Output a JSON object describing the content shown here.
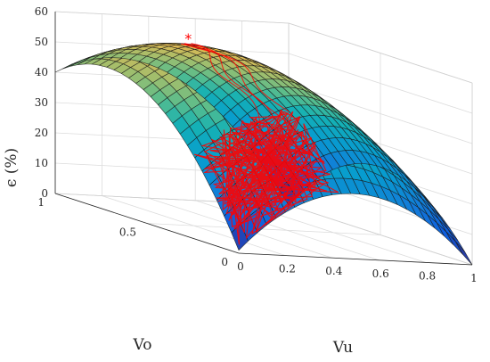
{
  "chart_data": {
    "type": "surface3d",
    "title": "",
    "xlabel": "Vu",
    "ylabel": "Vo",
    "zlabel": "ϵ (%)",
    "xlim": [
      0,
      1
    ],
    "ylim": [
      0,
      1
    ],
    "zlim": [
      0,
      60
    ],
    "xticks": [
      "0",
      "0.2",
      "0.4",
      "0.6",
      "0.8",
      "1"
    ],
    "yticks": [
      "0",
      "0.5",
      "1"
    ],
    "zticks": [
      "0",
      "10",
      "20",
      "30",
      "40",
      "50",
      "60"
    ],
    "grid": true,
    "colormap": "parula",
    "surface": {
      "grid_size": 25,
      "corner_values": {
        "vu0_vo0": 1,
        "vu1_vo0": 0,
        "vu0_vo1": 40,
        "vu1_vo1": 0
      },
      "peak": {
        "vu": 0.3,
        "vo": 0.67,
        "value": 58
      }
    },
    "overlay": {
      "color": "#ff0000",
      "marker": "*",
      "marker_point": {
        "vu": 0.31,
        "vo": 0.67,
        "value": 58
      },
      "cluster_region": {
        "vu": [
          0.0,
          0.45
        ],
        "vo": [
          0.0,
          0.25
        ]
      }
    }
  }
}
